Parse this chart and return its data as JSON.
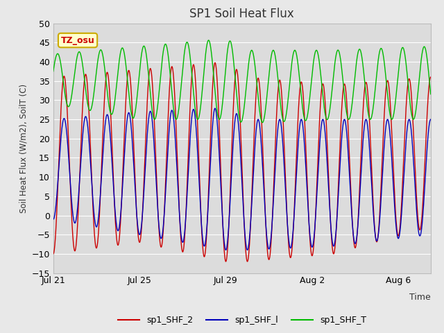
{
  "title": "SP1 Soil Heat Flux",
  "xlabel": "Time",
  "ylabel": "Soil Heat Flux (W/m2), SoilT (C)",
  "ylim": [
    -15,
    50
  ],
  "yticks": [
    -15,
    -10,
    -5,
    0,
    5,
    10,
    15,
    20,
    25,
    30,
    35,
    40,
    45,
    50
  ],
  "xlim_end_day": 17.5,
  "xtick_labels": [
    "Jul 21",
    "Jul 25",
    "Jul 29",
    "Aug 2",
    "Aug 6"
  ],
  "xtick_positions": [
    0,
    4,
    8,
    12,
    16
  ],
  "legend_labels": [
    "sp1_SHF_2",
    "sp1_SHF_l",
    "sp1_SHF_T"
  ],
  "legend_colors": [
    "#cc0000",
    "#0000bb",
    "#00bb00"
  ],
  "fig_bg_color": "#e8e8e8",
  "plot_bg_color": "#dcdcdc",
  "label_box_color": "#ffffcc",
  "label_box_edge": "#ccaa00",
  "label_text": "TZ_osu",
  "label_text_color": "#cc0000",
  "grid_color": "#ffffff",
  "n_days": 17.5,
  "period": 1.0
}
